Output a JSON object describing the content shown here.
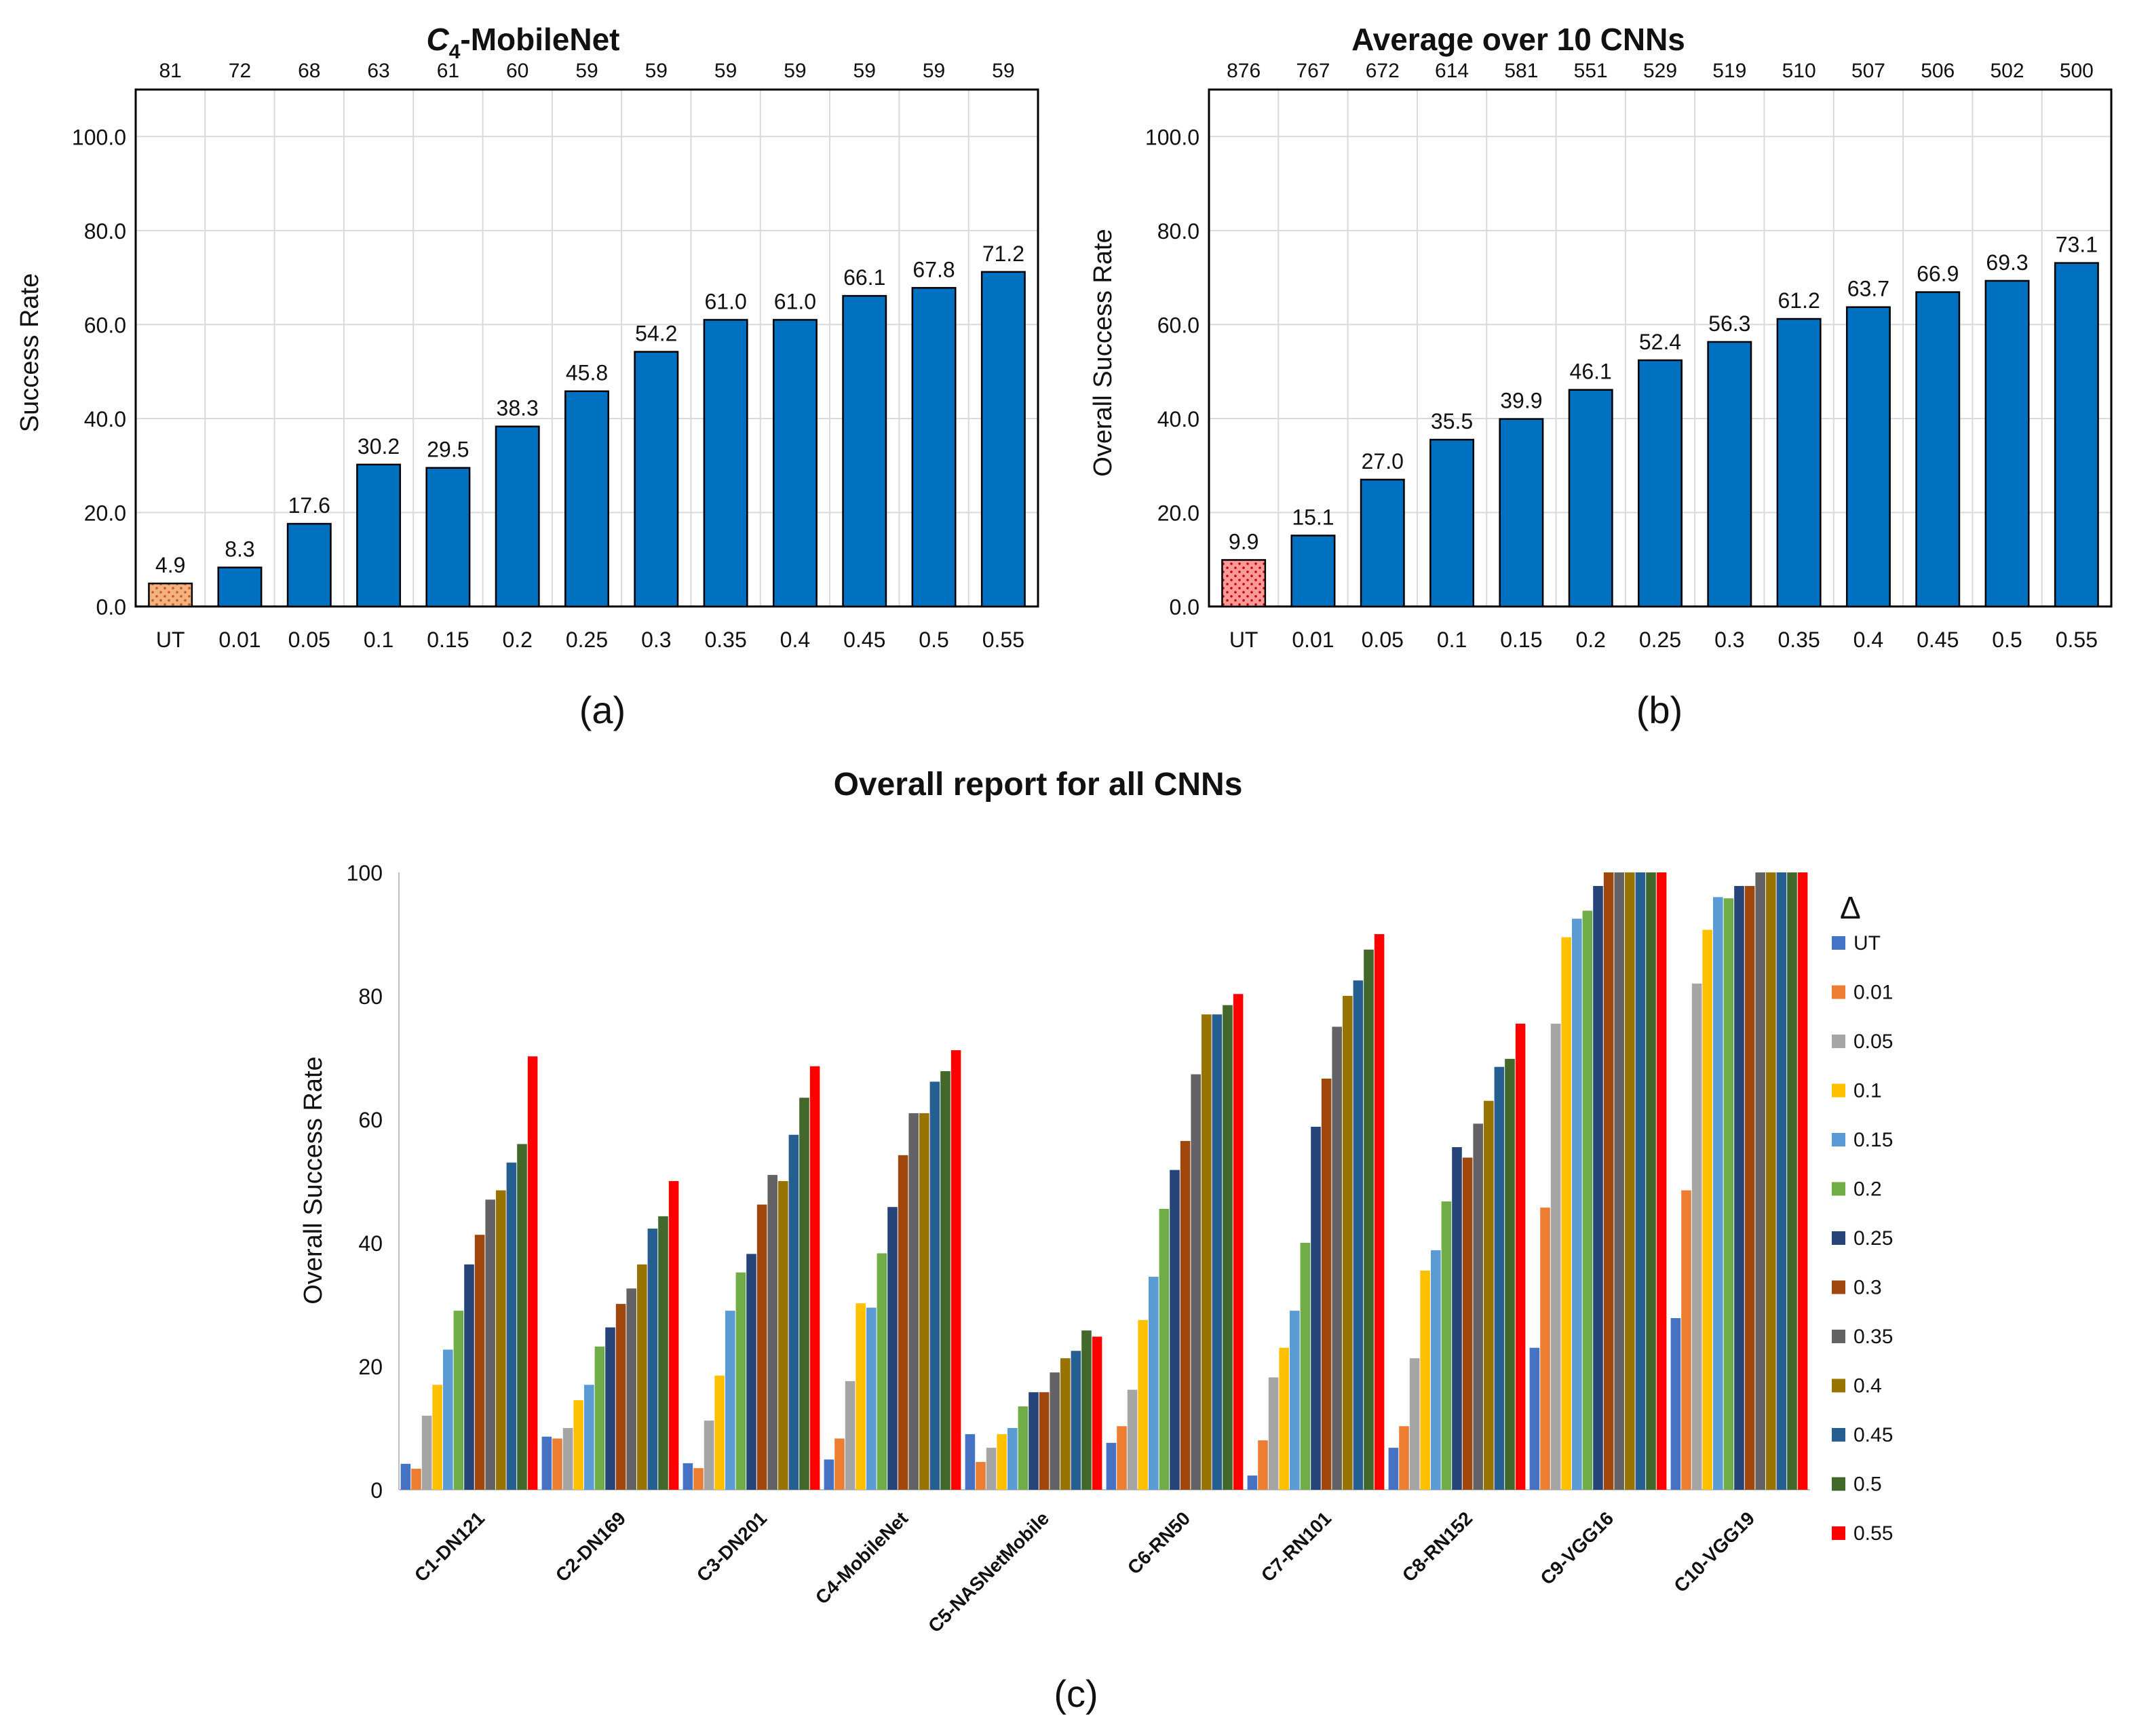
{
  "chart_data": [
    {
      "type": "bar",
      "panel_label": "(a)",
      "title_parts": {
        "italic": "C",
        "sub": "4",
        "rest": "-MobileNet"
      },
      "title": "C4-MobileNet",
      "ylabel": "Success Rate",
      "xlabel": "",
      "ylim": [
        0,
        110
      ],
      "yticks": [
        "0.0",
        "20.0",
        "40.0",
        "60.0",
        "80.0",
        "100.0"
      ],
      "ytick_values": [
        0,
        20,
        40,
        60,
        80,
        100
      ],
      "categories": [
        "UT",
        "0.01",
        "0.05",
        "0.1",
        "0.15",
        "0.2",
        "0.25",
        "0.3",
        "0.35",
        "0.4",
        "0.45",
        "0.5",
        "0.55"
      ],
      "values": [
        4.9,
        8.3,
        17.6,
        30.2,
        29.5,
        38.3,
        45.8,
        54.2,
        61.0,
        61.0,
        66.1,
        67.8,
        71.2
      ],
      "value_labels": [
        "4.9",
        "8.3",
        "17.6",
        "30.2",
        "29.5",
        "38.3",
        "45.8",
        "54.2",
        "61.0",
        "61.0",
        "66.1",
        "67.8",
        "71.2"
      ],
      "top_counts": [
        "81",
        "72",
        "68",
        "63",
        "61",
        "60",
        "59",
        "59",
        "59",
        "59",
        "59",
        "59",
        "59"
      ],
      "grid": true,
      "bar_color": "#0070C0",
      "ut_fill": "#F4B183",
      "ut_dot_color": "#C55A11"
    },
    {
      "type": "bar",
      "panel_label": "(b)",
      "title": "Average over 10 CNNs",
      "ylabel": "Overall Success Rate",
      "xlabel": "",
      "ylim": [
        0,
        110
      ],
      "yticks": [
        "0.0",
        "20.0",
        "40.0",
        "60.0",
        "80.0",
        "100.0"
      ],
      "ytick_values": [
        0,
        20,
        40,
        60,
        80,
        100
      ],
      "categories": [
        "UT",
        "0.01",
        "0.05",
        "0.1",
        "0.15",
        "0.2",
        "0.25",
        "0.3",
        "0.35",
        "0.4",
        "0.45",
        "0.5",
        "0.55"
      ],
      "values": [
        9.9,
        15.1,
        27.0,
        35.5,
        39.9,
        46.1,
        52.4,
        56.3,
        61.2,
        63.7,
        66.9,
        69.3,
        73.1
      ],
      "value_labels": [
        "9.9",
        "15.1",
        "27.0",
        "35.5",
        "39.9",
        "46.1",
        "52.4",
        "56.3",
        "61.2",
        "63.7",
        "66.9",
        "69.3",
        "73.1"
      ],
      "top_counts": [
        "876",
        "767",
        "672",
        "614",
        "581",
        "551",
        "529",
        "519",
        "510",
        "507",
        "506",
        "502",
        "500"
      ],
      "grid": true,
      "bar_color": "#0070C0",
      "ut_fill": "#FF9999",
      "ut_dot_color": "#C00000"
    },
    {
      "type": "bar",
      "panel_label": "(c)",
      "title": "Overall report for all CNNs",
      "ylabel": "Overall Success Rate",
      "xlabel": "",
      "ylim": [
        0,
        100
      ],
      "yticks": [
        "0",
        "20",
        "40",
        "60",
        "80",
        "100"
      ],
      "ytick_values": [
        0,
        20,
        40,
        60,
        80,
        100
      ],
      "legend_title": "Δ",
      "legend_position": "right",
      "categories": [
        "C1-DN121",
        "C2-DN169",
        "C3-DN201",
        "C4-MobileNet",
        "C5-NASNetMobile",
        "C6-RN50",
        "C7-RN101",
        "C8-RN152",
        "C9-VGG16",
        "C10-VGG19"
      ],
      "series": [
        {
          "name": "UT",
          "color": "#4472C4",
          "values": [
            4.2,
            8.6,
            4.3,
            4.9,
            9.0,
            7.6,
            2.3,
            6.8,
            23.0,
            27.8
          ]
        },
        {
          "name": "0.01",
          "color": "#ED7D31",
          "values": [
            3.4,
            8.3,
            3.5,
            8.3,
            4.5,
            10.3,
            8.0,
            10.3,
            45.7,
            48.5
          ]
        },
        {
          "name": "0.05",
          "color": "#A5A5A5",
          "values": [
            12.0,
            10.0,
            11.2,
            17.6,
            6.8,
            16.2,
            18.2,
            21.3,
            75.5,
            82.0
          ]
        },
        {
          "name": "0.1",
          "color": "#FFC000",
          "values": [
            17.0,
            14.5,
            18.5,
            30.2,
            9.0,
            27.5,
            23.0,
            35.5,
            89.5,
            90.7
          ]
        },
        {
          "name": "0.15",
          "color": "#5B9BD5",
          "values": [
            22.7,
            17.0,
            29.0,
            29.5,
            10.0,
            34.5,
            29.0,
            38.8,
            92.5,
            96.0
          ]
        },
        {
          "name": "0.2",
          "color": "#70AD47",
          "values": [
            29.0,
            23.2,
            35.2,
            38.3,
            13.5,
            45.5,
            40.0,
            46.7,
            93.8,
            95.8
          ]
        },
        {
          "name": "0.25",
          "color": "#264478",
          "values": [
            36.5,
            26.3,
            38.2,
            45.8,
            15.8,
            51.8,
            58.8,
            55.5,
            97.8,
            97.8
          ]
        },
        {
          "name": "0.3",
          "color": "#9E480E",
          "values": [
            41.3,
            30.1,
            46.2,
            54.2,
            15.8,
            56.5,
            66.6,
            53.8,
            100.0,
            97.8
          ]
        },
        {
          "name": "0.35",
          "color": "#636363",
          "values": [
            47.0,
            32.6,
            51.0,
            61.0,
            19.0,
            67.3,
            75.0,
            59.3,
            100.0,
            100.0
          ]
        },
        {
          "name": "0.4",
          "color": "#997300",
          "values": [
            48.5,
            36.5,
            50.0,
            61.0,
            21.3,
            77.0,
            80.0,
            63.0,
            100.0,
            100.0
          ]
        },
        {
          "name": "0.45",
          "color": "#255E91",
          "values": [
            53.0,
            42.3,
            57.5,
            66.1,
            22.5,
            77.0,
            82.5,
            68.5,
            100.0,
            100.0
          ]
        },
        {
          "name": "0.5",
          "color": "#43682B",
          "values": [
            56.0,
            44.3,
            63.5,
            67.8,
            25.8,
            78.5,
            87.5,
            69.8,
            100.0,
            100.0
          ]
        },
        {
          "name": "0.55",
          "color": "#FF0000",
          "values": [
            70.2,
            50.0,
            68.6,
            71.2,
            24.8,
            80.3,
            90.0,
            75.5,
            100.0,
            100.0
          ]
        }
      ]
    }
  ]
}
